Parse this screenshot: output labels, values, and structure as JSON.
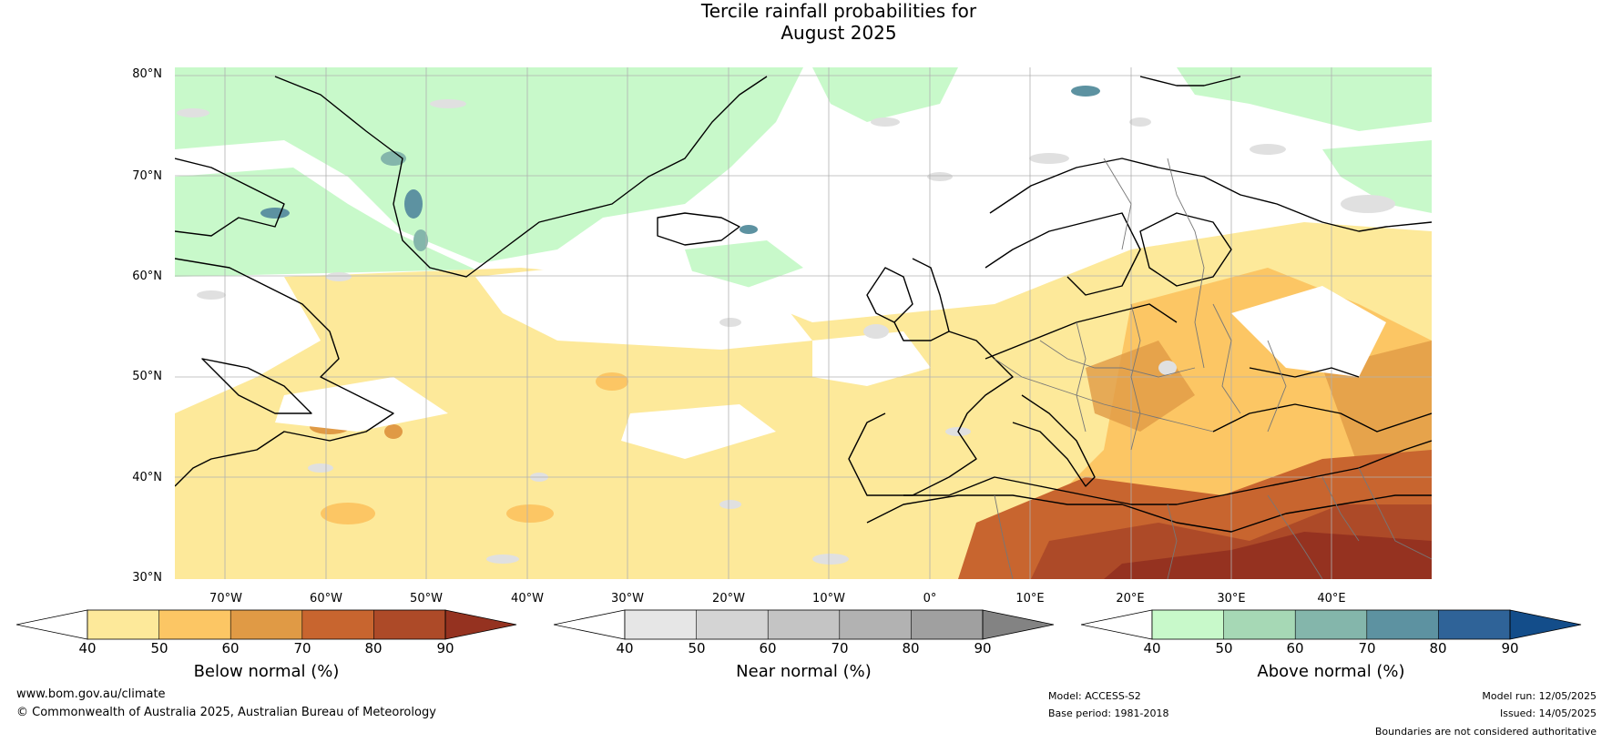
{
  "title": {
    "line1": "Tercile rainfall probabilities for",
    "line2": "August 2025"
  },
  "lat_labels": [
    "80°N",
    "70°N",
    "60°N",
    "50°N",
    "40°N",
    "30°N"
  ],
  "lon_labels": [
    "70°W",
    "60°W",
    "50°W",
    "40°W",
    "30°W",
    "20°W",
    "10°W",
    "0°",
    "10°E",
    "20°E",
    "30°E",
    "40°E"
  ],
  "colorbars": [
    {
      "title": "Below normal (%)",
      "ticks": [
        "40",
        "50",
        "60",
        "70",
        "80",
        "90"
      ],
      "colors": [
        "#ffffff",
        "#fde99a",
        "#fcc664",
        "#e09a45",
        "#c8652f",
        "#ad4a28",
        "#953220"
      ]
    },
    {
      "title": "Near normal (%)",
      "ticks": [
        "40",
        "50",
        "60",
        "70",
        "80",
        "90"
      ],
      "colors": [
        "#ffffff",
        "#e6e6e6",
        "#d4d4d4",
        "#c4c4c4",
        "#b2b2b2",
        "#a0a0a0",
        "#838383"
      ]
    },
    {
      "title": "Above normal (%)",
      "ticks": [
        "40",
        "50",
        "60",
        "70",
        "80",
        "90"
      ],
      "colors": [
        "#ffffff",
        "#c8f9ca",
        "#a6d8b5",
        "#84b6ab",
        "#5d92a1",
        "#2f6398",
        "#134d8a"
      ]
    }
  ],
  "footer": {
    "url": "www.bom.gov.au/climate",
    "copyright": "© Commonwealth of Australia 2025, Australian Bureau of Meteorology",
    "model": "Model: ACCESS-S2",
    "base_period": "Base period: 1981-2018",
    "model_run": "Model run: 12/05/2025",
    "issued": "Issued: 14/05/2025",
    "disclaimer": "Boundaries are not considered authoritative"
  }
}
